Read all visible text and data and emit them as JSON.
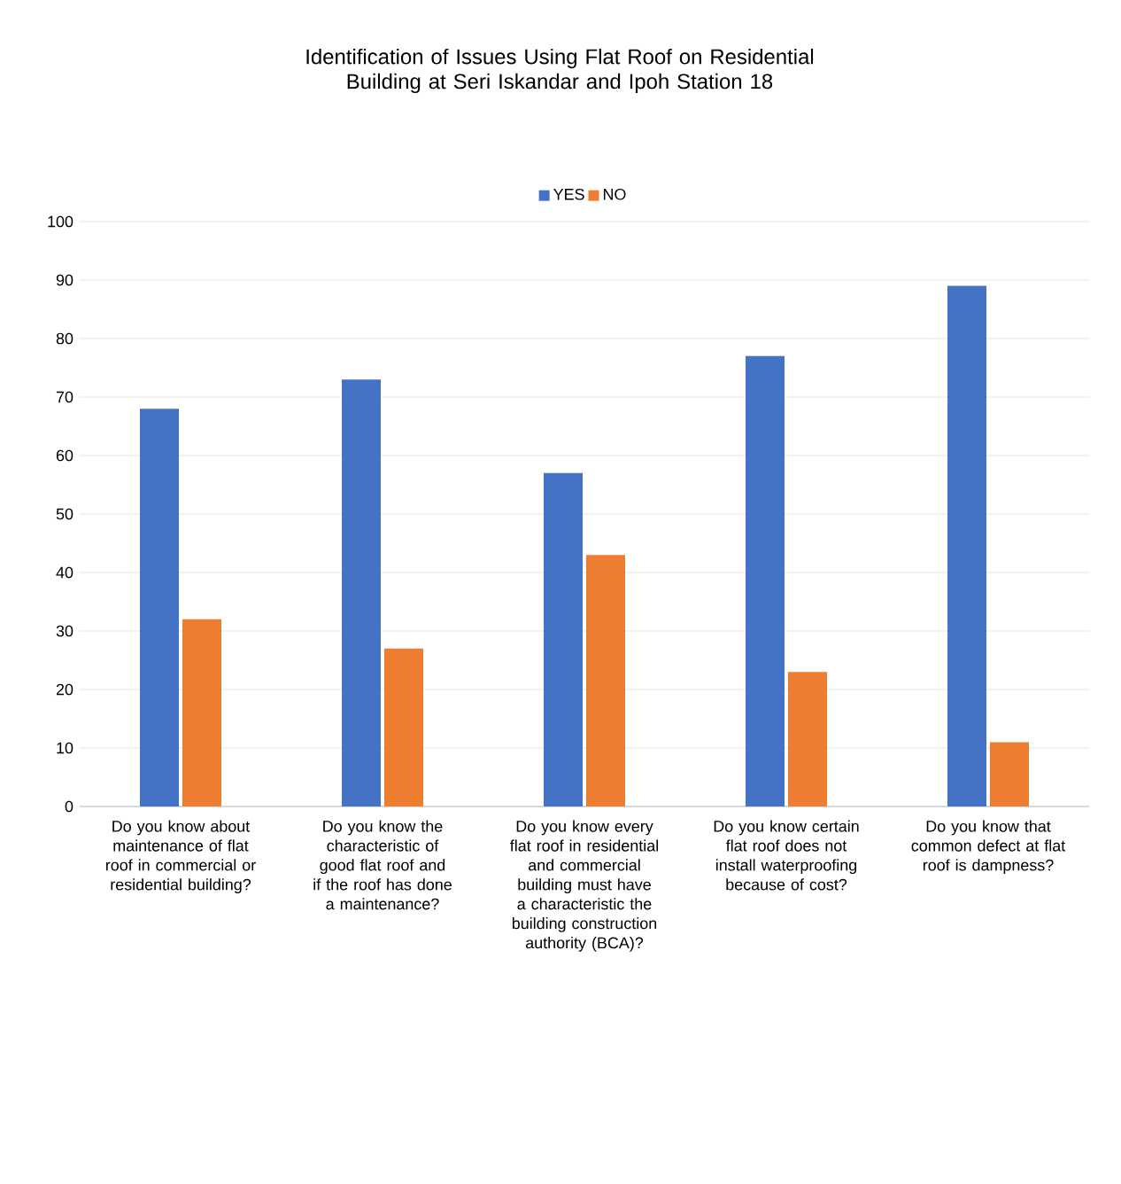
{
  "chart_data": {
    "type": "bar",
    "title": "Identification of Issues Using Flat Roof on Residential Building at Seri Iskandar and Ipoh Station 18",
    "categories": [
      "Do you know about maintenance of flat roof in commercial or residential building?",
      "Do you know the characteristic of good flat roof and if the roof has done a maintenance?",
      "Do you know every flat roof in residential and commercial building must have a characteristic the building construction authority (BCA)?",
      "Do you know certain flat roof does not install waterproofing because of cost?",
      "Do you know that common defect at flat roof is dampness?"
    ],
    "series": [
      {
        "name": "YES",
        "color": "#4472c4",
        "values": [
          68,
          73,
          57,
          77,
          89
        ]
      },
      {
        "name": "NO",
        "color": "#ed7d31",
        "values": [
          32,
          27,
          43,
          23,
          11
        ]
      }
    ],
    "ylim": [
      0,
      100
    ],
    "yticks": [
      0,
      10,
      20,
      30,
      40,
      50,
      60,
      70,
      80,
      90,
      100
    ],
    "grid": "y",
    "legend": "top"
  }
}
